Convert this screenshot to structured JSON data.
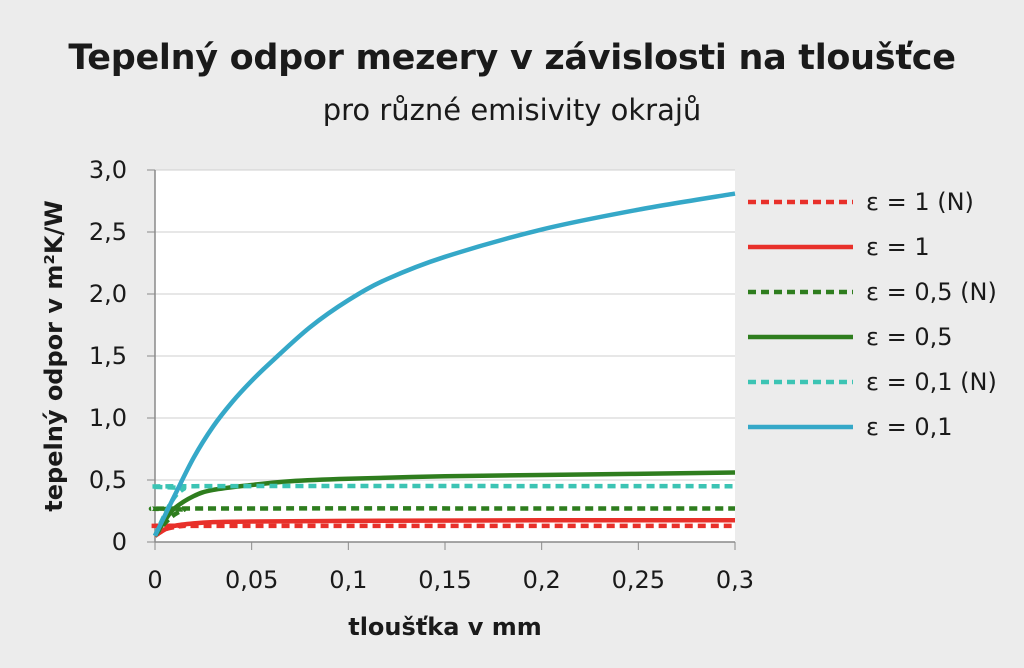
{
  "chart_data": {
    "type": "line",
    "title": "Tepelný odpor mezery v závislosti na tloušťce",
    "subtitle": "pro různé emisivity okrajů",
    "xlabel": "tloušťka v mm",
    "ylabel": "tepelný odpor v m²K/W",
    "xlim": [
      0,
      0.3
    ],
    "ylim": [
      0,
      3.0
    ],
    "x_ticks": [
      0,
      0.05,
      0.1,
      0.15,
      0.2,
      0.25,
      0.3
    ],
    "x_tick_labels": [
      "0",
      "0,05",
      "0,1",
      "0,15",
      "0,2",
      "0,25",
      "0,3"
    ],
    "y_ticks": [
      0,
      0.5,
      1.0,
      1.5,
      2.0,
      2.5,
      3.0
    ],
    "y_tick_labels": [
      "0",
      "0,5",
      "1,0",
      "1,5",
      "2,0",
      "2,5",
      "3,0"
    ],
    "grid": "horizontal",
    "legend_position": "right",
    "series": [
      {
        "name": "ε = 1 (N)",
        "color": "#e8302a",
        "dashed": true,
        "x": [
          0,
          0.005,
          0.01,
          0.015,
          0.02,
          0.3
        ],
        "y": [
          0.05,
          0.1,
          0.12,
          0.13,
          0.13,
          0.13
        ]
      },
      {
        "name": "ε = 1",
        "color": "#e8302a",
        "dashed": false,
        "x": [
          0,
          0.005,
          0.01,
          0.02,
          0.03,
          0.05,
          0.1,
          0.2,
          0.3
        ],
        "y": [
          0.05,
          0.1,
          0.13,
          0.15,
          0.16,
          0.165,
          0.17,
          0.175,
          0.175
        ]
      },
      {
        "name": "ε = 0,5 (N)",
        "color": "#2e7d1e",
        "dashed": true,
        "x": [
          0,
          0.005,
          0.01,
          0.015,
          0.02,
          0.3
        ],
        "y": [
          0.05,
          0.15,
          0.22,
          0.26,
          0.27,
          0.27
        ]
      },
      {
        "name": "ε = 0,5",
        "color": "#2e7d1e",
        "dashed": false,
        "x": [
          0,
          0.005,
          0.01,
          0.02,
          0.03,
          0.05,
          0.07,
          0.1,
          0.15,
          0.2,
          0.3
        ],
        "y": [
          0.05,
          0.17,
          0.27,
          0.37,
          0.42,
          0.46,
          0.49,
          0.51,
          0.53,
          0.54,
          0.56
        ]
      },
      {
        "name": "ε = 0,1 (N)",
        "color": "#3cc4b4",
        "dashed": true,
        "x": [
          0,
          0.005,
          0.01,
          0.015,
          0.02,
          0.3
        ],
        "y": [
          0.05,
          0.22,
          0.36,
          0.43,
          0.45,
          0.45
        ]
      },
      {
        "name": "ε = 0,1",
        "color": "#35a8c8",
        "dashed": false,
        "x": [
          0,
          0.01,
          0.02,
          0.03,
          0.04,
          0.05,
          0.06,
          0.08,
          0.1,
          0.12,
          0.15,
          0.2,
          0.25,
          0.3
        ],
        "y": [
          0.05,
          0.37,
          0.68,
          0.93,
          1.13,
          1.3,
          1.45,
          1.73,
          1.95,
          2.12,
          2.3,
          2.52,
          2.68,
          2.81
        ]
      }
    ]
  }
}
